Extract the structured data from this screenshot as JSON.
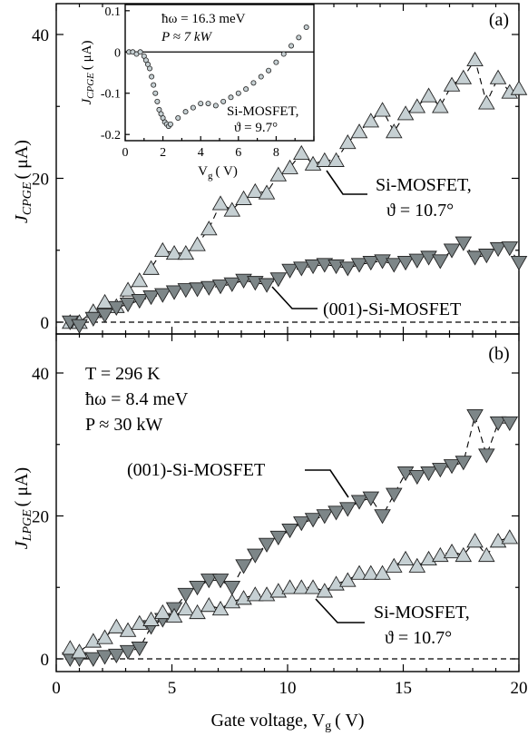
{
  "chart_data": [
    {
      "type": "scatter",
      "panel_label": "(a)",
      "ylabel": "J CPGE (μA)",
      "ylabel_main": "J",
      "ylabel_sub": "CPGE",
      "ylabel_unit": "( μA)",
      "xlim": [
        0,
        20
      ],
      "ylim": [
        -2,
        45
      ],
      "yticks": [
        "0",
        "20",
        "40"
      ],
      "series": [
        {
          "name": "Si-MOSFET, ϑ = 10.7°",
          "label_line1": "Si-MOSFET,",
          "label_line2": "ϑ = 10.7°",
          "marker": "triangle-up",
          "x": [
            0.6,
            1.0,
            1.6,
            2.1,
            2.6,
            3.1,
            3.6,
            4.1,
            4.6,
            5.1,
            5.6,
            6.1,
            6.6,
            7.1,
            7.6,
            8.1,
            8.6,
            9.1,
            9.6,
            10.1,
            10.6,
            11.1,
            11.6,
            12.1,
            12.6,
            13.1,
            13.6,
            14.1,
            14.6,
            15.1,
            15.6,
            16.1,
            16.6,
            17.1,
            17.6,
            18.1,
            18.6,
            19.1,
            19.6,
            20.0
          ],
          "y": [
            0,
            0,
            1.5,
            2.8,
            2.2,
            4.5,
            5.8,
            7.5,
            10.0,
            9.6,
            9.6,
            10.8,
            13.0,
            16.5,
            15.6,
            17.2,
            18.2,
            18.0,
            20.5,
            21.5,
            23.5,
            22.0,
            22.5,
            22.5,
            25.0,
            26.5,
            28.0,
            29.5,
            26.5,
            29.0,
            30.0,
            31.5,
            30.0,
            33.0,
            34.0,
            36.5,
            30.5,
            34.0,
            32.0,
            32.5
          ]
        },
        {
          "name": "(001)-Si-MOSFET",
          "marker": "triangle-down",
          "x": [
            0.6,
            1.0,
            1.6,
            2.1,
            2.6,
            3.1,
            3.6,
            4.1,
            4.6,
            5.1,
            5.6,
            6.1,
            6.6,
            7.1,
            7.6,
            8.1,
            8.6,
            9.1,
            9.6,
            10.1,
            10.6,
            11.1,
            11.6,
            12.1,
            12.6,
            13.1,
            13.6,
            14.1,
            14.6,
            15.1,
            15.6,
            16.1,
            16.6,
            17.1,
            17.6,
            18.1,
            18.6,
            19.1,
            19.6,
            20.0
          ],
          "y": [
            0,
            -0.5,
            0.5,
            1.0,
            2.0,
            2.5,
            3.0,
            3.5,
            3.8,
            4.2,
            4.5,
            4.6,
            4.8,
            5.0,
            5.3,
            5.8,
            5.5,
            5.2,
            6.0,
            7.2,
            7.5,
            7.8,
            8.0,
            7.8,
            7.5,
            8.0,
            8.3,
            8.5,
            8.0,
            8.3,
            8.6,
            9.0,
            8.5,
            10.0,
            11.0,
            9.0,
            9.3,
            10.2,
            10.3,
            8.3
          ]
        }
      ],
      "inset": {
        "type": "scatter",
        "xlabel": "Vg (V)",
        "xlabel_main": "V",
        "xlabel_sub": "g",
        "xlabel_unit": "( V)",
        "ylabel": "J CPGE (μA)",
        "ylabel_main": "J",
        "ylabel_sub": "CPGE",
        "ylabel_unit": "( μA)",
        "xlim": [
          0,
          10
        ],
        "ylim": [
          -0.215,
          0.115
        ],
        "xticks": [
          "0",
          "2",
          "4",
          "6",
          "8"
        ],
        "yticks": [
          "0.1",
          "0",
          "-0.1",
          "-0.2"
        ],
        "params_line1": "ħω = 16.3 meV",
        "params_line2": "P ≈ 7 kW",
        "device_line1": "Si-MOSFET,",
        "device_line2": "ϑ = 9.7°",
        "x": [
          0.2,
          0.4,
          0.6,
          0.8,
          1.0,
          1.1,
          1.2,
          1.3,
          1.4,
          1.5,
          1.6,
          1.7,
          1.8,
          1.9,
          2.0,
          2.1,
          2.2,
          2.3,
          2.4,
          2.8,
          3.2,
          3.6,
          4.0,
          4.4,
          4.8,
          5.2,
          5.6,
          6.0,
          6.4,
          6.8,
          7.2,
          7.6,
          8.0,
          8.4,
          8.8,
          9.2,
          9.6
        ],
        "y": [
          0.0,
          0.0,
          -0.005,
          0.0,
          -0.01,
          -0.02,
          -0.03,
          -0.04,
          -0.06,
          -0.08,
          -0.1,
          -0.12,
          -0.14,
          -0.15,
          -0.16,
          -0.17,
          -0.175,
          -0.18,
          -0.175,
          -0.16,
          -0.145,
          -0.135,
          -0.125,
          -0.125,
          -0.13,
          -0.12,
          -0.11,
          -0.1,
          -0.09,
          -0.075,
          -0.06,
          -0.045,
          -0.025,
          -0.005,
          0.015,
          0.035,
          0.06
        ]
      }
    },
    {
      "type": "scatter",
      "panel_label": "(b)",
      "ylabel": "J LPGE (μA)",
      "ylabel_main": "J",
      "ylabel_sub": "LPGE",
      "ylabel_unit": "( μA)",
      "xlabel": "Gate voltage, Vg (V)",
      "xlabel_main": "Gate voltage, V",
      "xlabel_sub": "g",
      "xlabel_unit": "( V)",
      "xlim": [
        0,
        20
      ],
      "ylim": [
        -2,
        45
      ],
      "xticks": [
        "0",
        "5",
        "10",
        "15",
        "20"
      ],
      "yticks": [
        "0",
        "20",
        "40"
      ],
      "params_line1": "T = 296 K",
      "params_line2": "ħω = 8.4 meV",
      "params_line3": "P ≈ 30 kW",
      "series": [
        {
          "name": "(001)-Si-MOSFET",
          "marker": "triangle-down",
          "x": [
            0.6,
            1.0,
            1.6,
            2.1,
            2.6,
            3.1,
            3.6,
            4.1,
            4.6,
            5.1,
            5.6,
            6.1,
            6.6,
            7.1,
            7.6,
            8.1,
            8.6,
            9.1,
            9.6,
            10.1,
            10.6,
            11.1,
            11.6,
            12.1,
            12.6,
            13.1,
            13.6,
            14.1,
            14.6,
            15.1,
            15.6,
            16.1,
            16.6,
            17.1,
            17.6,
            18.1,
            18.6,
            19.1,
            19.6
          ],
          "y": [
            0,
            0,
            0,
            0.3,
            0.5,
            1.0,
            1.5,
            4.5,
            5.5,
            7.0,
            9.0,
            10.0,
            11.0,
            11.0,
            10.0,
            13.0,
            14.5,
            16.0,
            17.0,
            18.0,
            19.0,
            19.5,
            20.0,
            20.5,
            21.0,
            22.0,
            22.5,
            20.0,
            23.0,
            26.0,
            25.5,
            26.0,
            26.5,
            27.0,
            27.5,
            34.0,
            28.5,
            33.0,
            33.0
          ]
        },
        {
          "name": "Si-MOSFET, ϑ = 10.7°",
          "label_line1": "Si-MOSFET,",
          "label_line2": "ϑ = 10.7°",
          "marker": "triangle-up",
          "x": [
            0.6,
            1.0,
            1.6,
            2.1,
            2.6,
            3.1,
            3.6,
            4.1,
            4.6,
            5.1,
            5.6,
            6.1,
            6.6,
            7.1,
            7.6,
            8.1,
            8.6,
            9.1,
            9.6,
            10.1,
            10.6,
            11.1,
            11.6,
            12.1,
            12.6,
            13.1,
            13.6,
            14.1,
            14.6,
            15.1,
            15.6,
            16.1,
            16.6,
            17.1,
            17.6,
            18.1,
            18.6,
            19.1,
            19.6
          ],
          "y": [
            1.5,
            1.0,
            2.5,
            3.0,
            4.5,
            4.0,
            5.0,
            5.5,
            6.5,
            6.0,
            7.0,
            6.5,
            7.5,
            7.0,
            8.0,
            8.5,
            9.0,
            9.0,
            9.5,
            10.0,
            10.0,
            10.0,
            9.5,
            10.5,
            11.0,
            12.0,
            12.0,
            12.0,
            13.0,
            14.0,
            13.0,
            14.0,
            14.5,
            15.0,
            14.5,
            16.5,
            14.5,
            16.5,
            17.0
          ]
        }
      ]
    }
  ]
}
